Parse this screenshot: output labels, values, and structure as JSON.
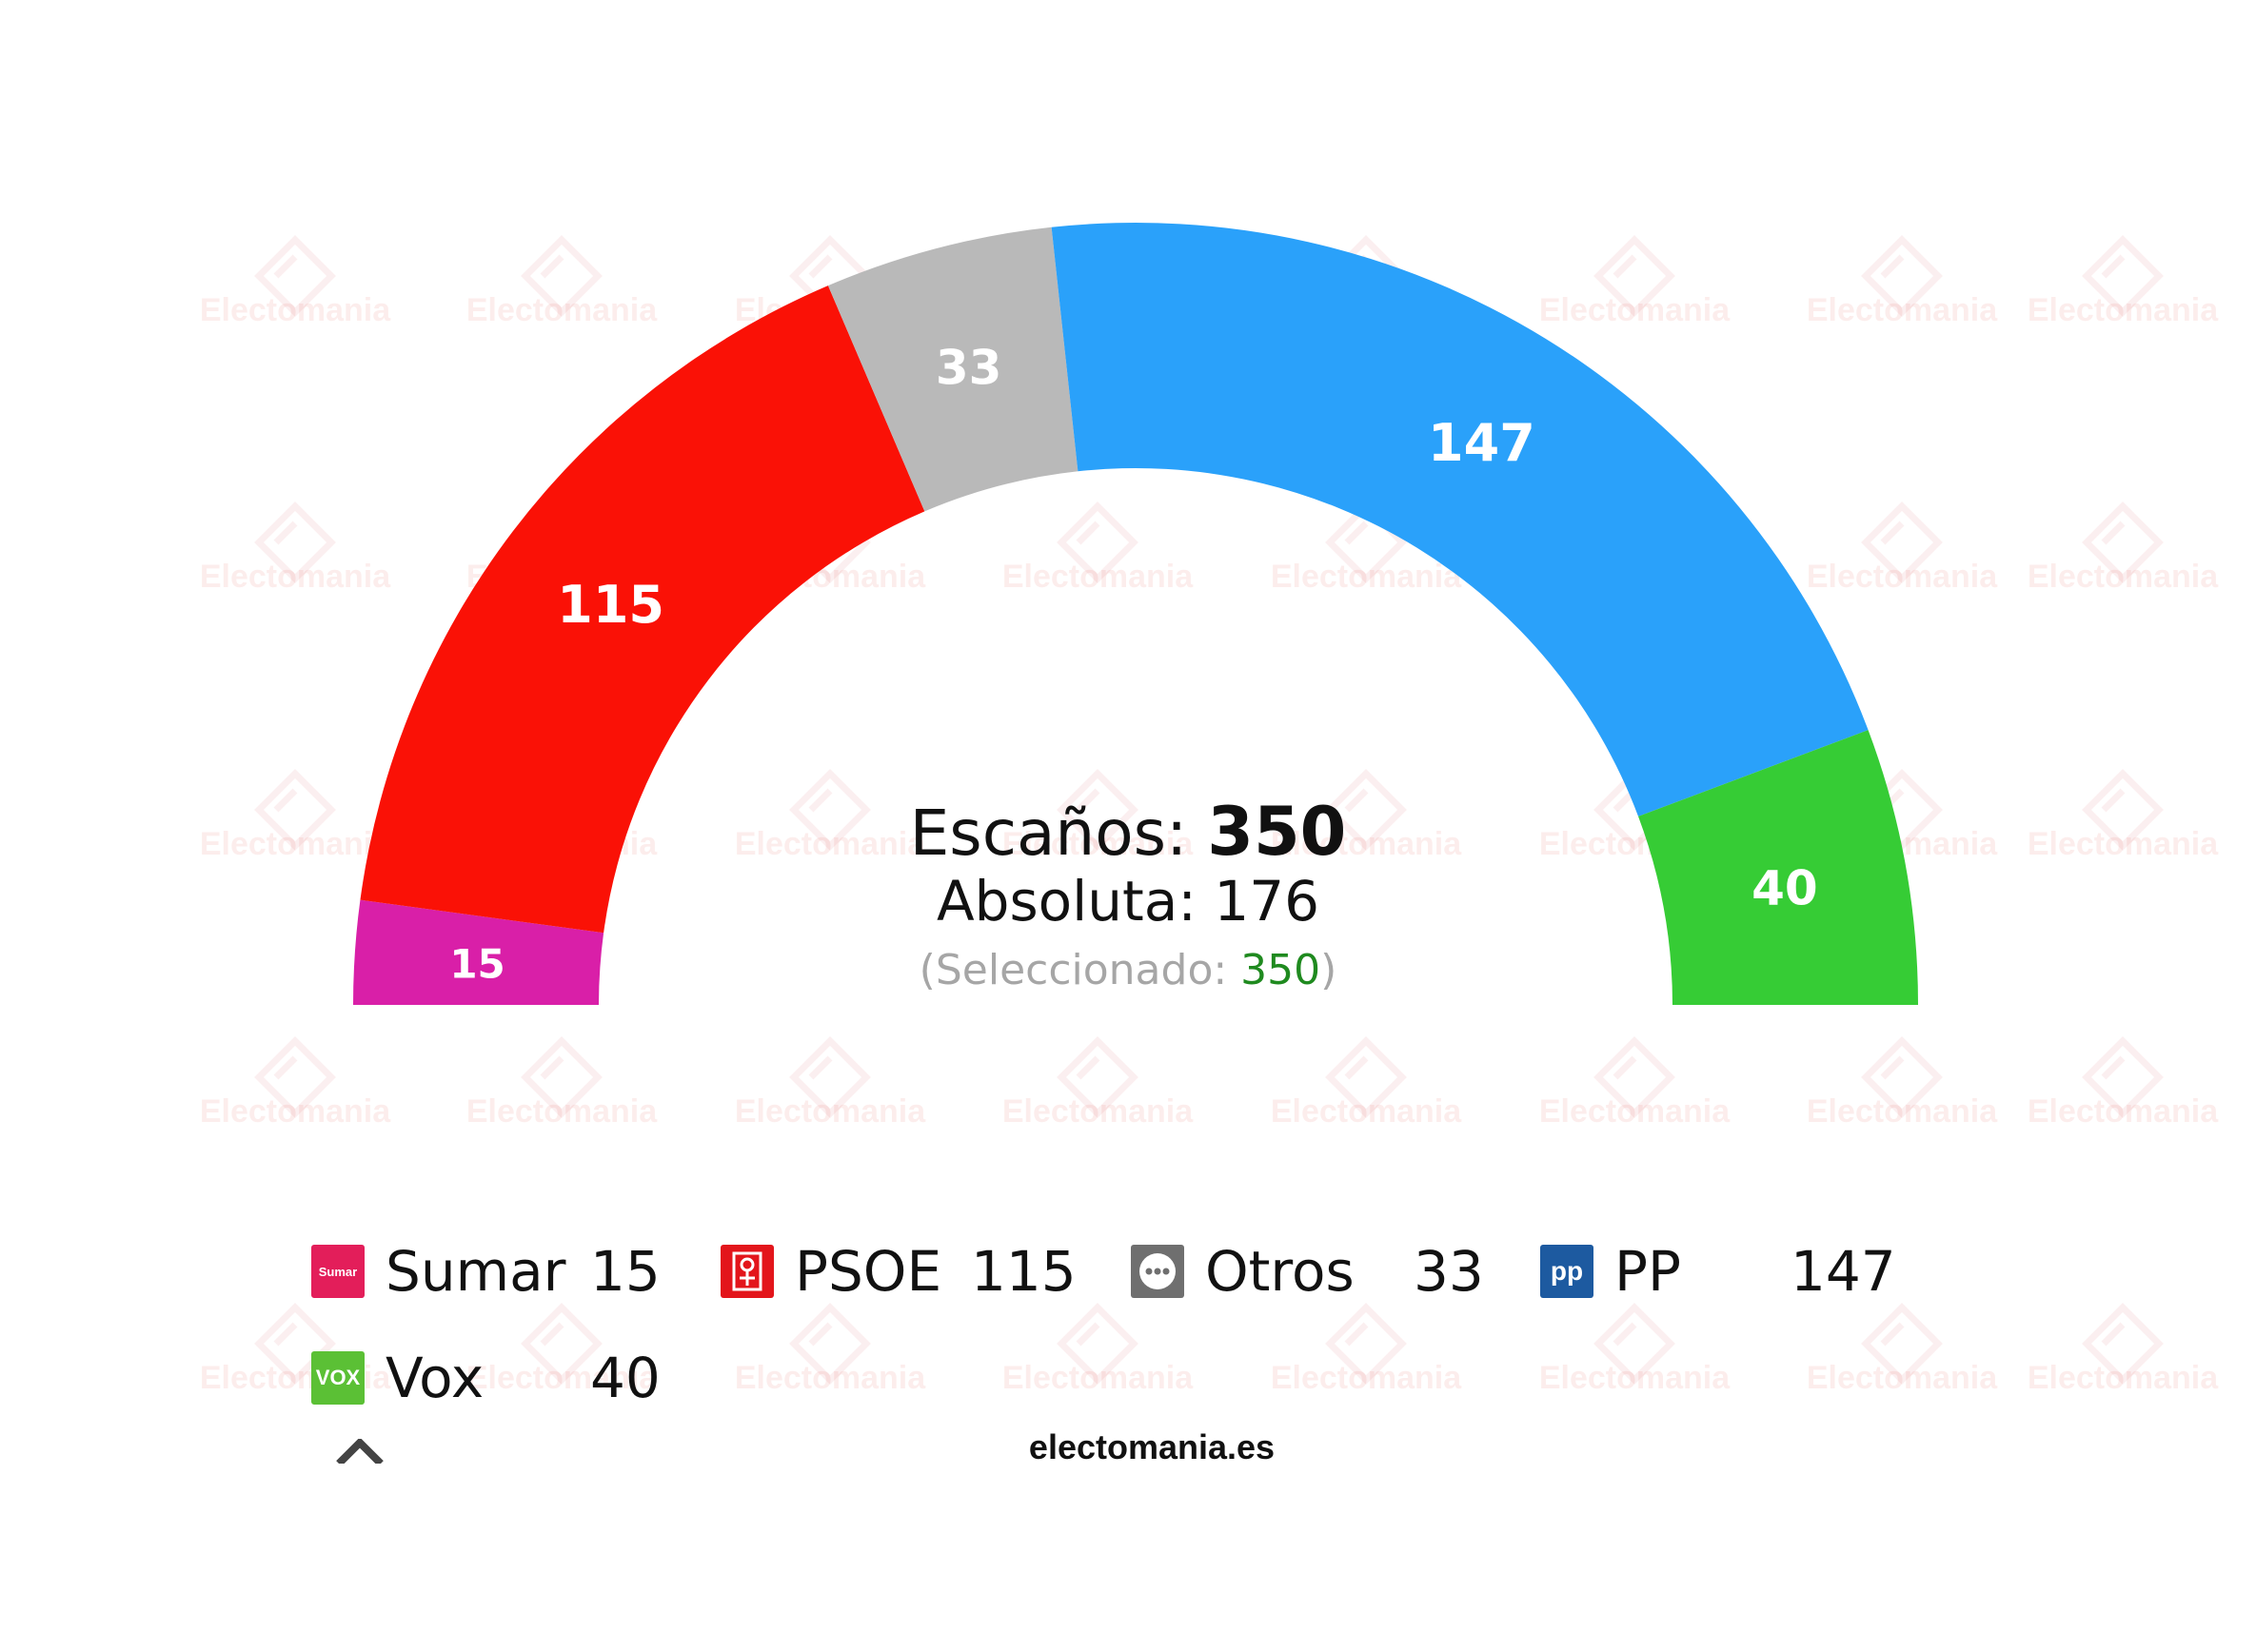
{
  "watermark": "Electomania",
  "chart_data": {
    "type": "parliament",
    "total_seats": 350,
    "parties": [
      {
        "name": "Sumar",
        "seats": 15,
        "color": "#d91fa8",
        "icon": "sumar-logo-icon",
        "icon_text": "Sumar",
        "icon_color": "#e31e5a"
      },
      {
        "name": "PSOE",
        "seats": 115,
        "color": "#fa1106",
        "icon": "psoe-logo-icon",
        "icon_text": "",
        "icon_color": "#e3151b"
      },
      {
        "name": "Otros",
        "seats": 33,
        "color": "#b9b9b9",
        "icon": "otros-logo-icon",
        "icon_text": "",
        "icon_color": "#6f6f6f"
      },
      {
        "name": "PP",
        "seats": 147,
        "color": "#2aa1fa",
        "icon": "pp-logo-icon",
        "icon_text": "pp",
        "icon_color": "#1d5aa0"
      },
      {
        "name": "Vox",
        "seats": 40,
        "color": "#36cc35",
        "icon": "vox-logo-icon",
        "icon_text": "VOX",
        "icon_color": "#5bc035"
      }
    ]
  },
  "center": {
    "seats_label": "Escaños:",
    "seats_value": "350",
    "majority_label": "Absoluta:",
    "majority_value": "176",
    "selected_open": "(Seleccionado: ",
    "selected_value": "350",
    "selected_close": ")"
  },
  "footer": {
    "site": "electomania.es"
  }
}
